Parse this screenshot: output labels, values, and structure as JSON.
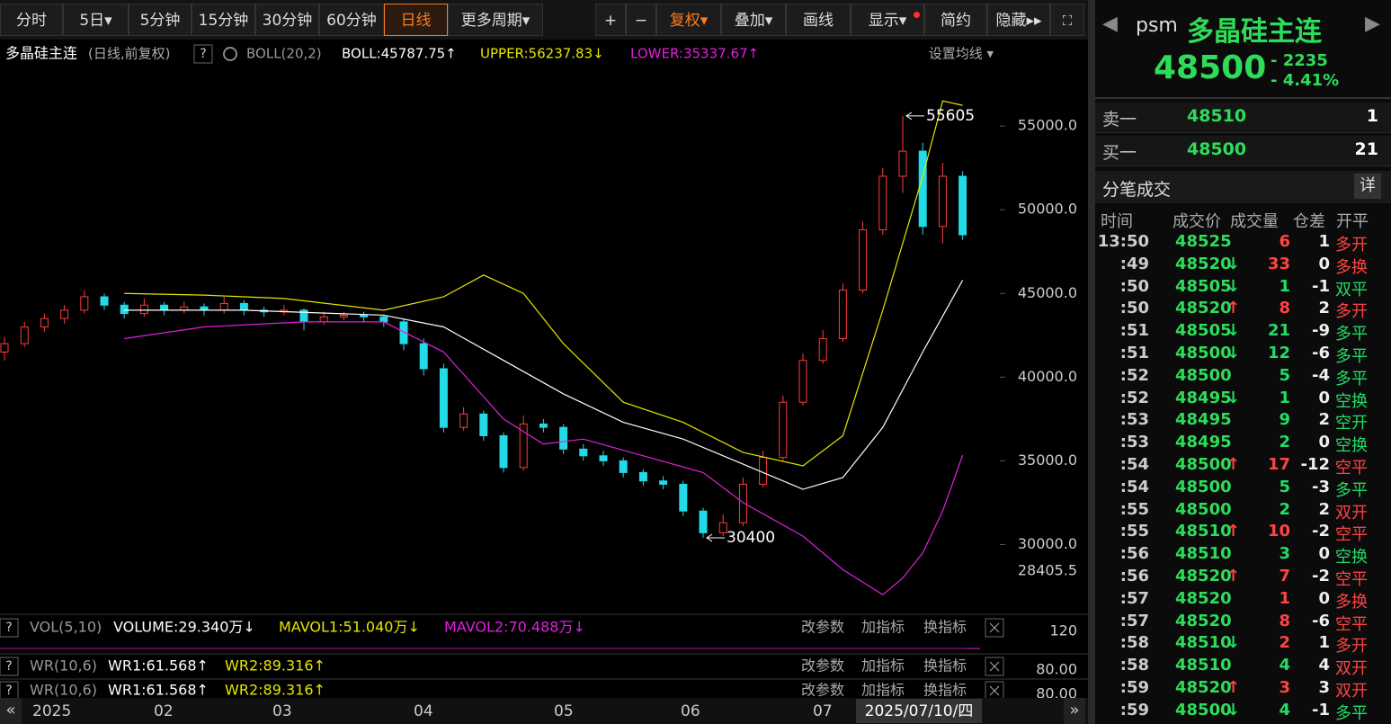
{
  "toolbar": {
    "periods": [
      "分时",
      "5日▾",
      "5分钟",
      "15分钟",
      "30分钟",
      "60分钟",
      "日线",
      "更多周期▾"
    ],
    "active_period": "日线",
    "tools": [
      "+",
      "−",
      "复权▾",
      "叠加▾",
      "画线",
      "显示▾",
      "简约",
      "隐藏▸▸"
    ]
  },
  "info": {
    "symbol": "多晶硅主连",
    "mode": "(日线,前复权)",
    "help": "?",
    "indicator": "BOLL(20,2)",
    "items": [
      {
        "text": "BOLL:45787.75↑",
        "color": "#ffffff"
      },
      {
        "text": "UPPER:56237.83↓",
        "color": "#e6e600"
      },
      {
        "text": "LOWER:35337.67↑",
        "color": "#e020e0"
      }
    ],
    "ma_settings": "设置均线 ▾"
  },
  "chart": {
    "type": "candlestick",
    "ylim": [
      26800,
      58500
    ],
    "yticks": [
      {
        "value": 55000,
        "label": "55000.0"
      },
      {
        "value": 50000,
        "label": "50000.0"
      },
      {
        "value": 45000,
        "label": "45000.0"
      },
      {
        "value": 40000,
        "label": "40000.0"
      },
      {
        "value": 35000,
        "label": "35000.0"
      },
      {
        "value": 30000,
        "label": "30000.0"
      }
    ],
    "up_color": "#ff3b3b",
    "down_color": "#22dbe6",
    "candles": [
      [
        41500,
        42400,
        41000,
        42000
      ],
      [
        42000,
        43300,
        41800,
        43000
      ],
      [
        43000,
        43800,
        42700,
        43500
      ],
      [
        43500,
        44300,
        43200,
        44000
      ],
      [
        44000,
        45200,
        43800,
        44800
      ],
      [
        44800,
        45000,
        44000,
        44300
      ],
      [
        44300,
        44500,
        43500,
        43800
      ],
      [
        43800,
        44700,
        43600,
        44300
      ],
      [
        44300,
        44500,
        43700,
        44000
      ],
      [
        44000,
        44500,
        43800,
        44200
      ],
      [
        44200,
        44400,
        43700,
        44000
      ],
      [
        44000,
        44800,
        43800,
        44400
      ],
      [
        44400,
        44600,
        43700,
        44000
      ],
      [
        44000,
        44200,
        43600,
        43900
      ],
      [
        43900,
        44300,
        43700,
        44000
      ],
      [
        44000,
        44100,
        42800,
        43300
      ],
      [
        43300,
        43900,
        43100,
        43600
      ],
      [
        43600,
        43900,
        43400,
        43700
      ],
      [
        43700,
        43900,
        43300,
        43600
      ],
      [
        43600,
        43700,
        43000,
        43300
      ],
      [
        43300,
        43500,
        41600,
        42000
      ],
      [
        42000,
        42300,
        40100,
        40500
      ],
      [
        40500,
        40800,
        36700,
        37000
      ],
      [
        37000,
        38200,
        36800,
        37800
      ],
      [
        37800,
        38000,
        36200,
        36500
      ],
      [
        36500,
        36700,
        34300,
        34600
      ],
      [
        34600,
        37700,
        34400,
        37200
      ],
      [
        37200,
        37500,
        36700,
        37000
      ],
      [
        37000,
        37200,
        35400,
        35700
      ],
      [
        35700,
        36000,
        35000,
        35300
      ],
      [
        35300,
        35600,
        34700,
        35000
      ],
      [
        35000,
        35200,
        34000,
        34300
      ],
      [
        34300,
        34500,
        33500,
        33800
      ],
      [
        33800,
        34100,
        33300,
        33600
      ],
      [
        33600,
        33800,
        31700,
        32000
      ],
      [
        32000,
        32200,
        30400,
        30700
      ],
      [
        30700,
        31800,
        30500,
        31300
      ],
      [
        31300,
        34000,
        31100,
        33600
      ],
      [
        33600,
        35600,
        33400,
        35200
      ],
      [
        35200,
        38900,
        35000,
        38500
      ],
      [
        38500,
        41400,
        38300,
        41000
      ],
      [
        41000,
        42800,
        40800,
        42300
      ],
      [
        42300,
        45600,
        42100,
        45200
      ],
      [
        45200,
        49300,
        45000,
        48800
      ],
      [
        48800,
        52500,
        48500,
        52000
      ],
      [
        52000,
        55605,
        51000,
        53500
      ],
      [
        53500,
        54000,
        48500,
        49000
      ],
      [
        49000,
        52800,
        48000,
        52000
      ],
      [
        52000,
        52300,
        48200,
        48500
      ]
    ],
    "bands": [
      {
        "name": "UPPER",
        "color": "#e6e600",
        "x": [
          6,
          10,
          14,
          19,
          22,
          24,
          26,
          28,
          31,
          34,
          37,
          40,
          42,
          44,
          46,
          47,
          48
        ],
        "values": [
          45000,
          44900,
          44700,
          44000,
          44800,
          46100,
          45000,
          42000,
          38500,
          37300,
          35500,
          34700,
          36500,
          44000,
          52000,
          56500,
          56237.83
        ]
      },
      {
        "name": "BOLL",
        "color": "#ffffff",
        "x": [
          6,
          12,
          19,
          22,
          25,
          28,
          31,
          34,
          37,
          40,
          42,
          44,
          46,
          48
        ],
        "values": [
          44000,
          44000,
          43700,
          43000,
          41000,
          39000,
          37300,
          36300,
          34800,
          33300,
          34000,
          37000,
          41500,
          45787.75
        ]
      },
      {
        "name": "LOWER",
        "color": "#e020e0",
        "x": [
          6,
          10,
          15,
          19,
          22,
          25,
          27,
          29,
          32,
          35,
          37,
          40,
          42,
          44,
          45,
          46,
          47,
          48
        ],
        "values": [
          42300,
          43000,
          43300,
          43300,
          41500,
          37500,
          36000,
          36300,
          35300,
          34300,
          32500,
          30500,
          28500,
          27000,
          28000,
          29500,
          32000,
          35337.67
        ]
      }
    ],
    "max_annotation": 55605,
    "min_annotation": 30400,
    "cursor_price": 28405.5,
    "x_labels": [
      "2025",
      "02",
      "03",
      "04",
      "05",
      "06",
      "07"
    ],
    "cursor_date": "2025/07/10/四"
  },
  "panels": [
    {
      "help": "?",
      "label": "VOL(5,10)",
      "items": [
        {
          "text": "VOLUME:29.340万↓",
          "color": "#ffffff"
        },
        {
          "text": "MAVOL1:51.040万↓",
          "color": "#e6e600"
        },
        {
          "text": "MAVOL2:70.488万↓",
          "color": "#e020e0"
        }
      ],
      "buttons": [
        "改参数",
        "加指标",
        "换指标"
      ],
      "axis": "120"
    },
    {
      "help": "?",
      "label": "WR(10,6)",
      "items": [
        {
          "text": "WR1:61.568↑",
          "color": "#ffffff"
        },
        {
          "text": "WR2:89.316↑",
          "color": "#e6e600"
        }
      ],
      "buttons": [
        "改参数",
        "加指标",
        "换指标"
      ],
      "axis": "80.00"
    },
    {
      "help": "?",
      "label": "WR(10,6)",
      "items": [
        {
          "text": "WR1:61.568↑",
          "color": "#ffffff"
        },
        {
          "text": "WR2:89.316↑",
          "color": "#e6e600"
        }
      ],
      "buttons": [
        "改参数",
        "加指标",
        "换指标"
      ],
      "axis": "80.00"
    }
  ],
  "quote": {
    "code": "psm",
    "name": "多晶硅主连",
    "price": 48500,
    "change": {
      "value": -2235,
      "label": "- 2235"
    },
    "change_pct": {
      "value": -4.41,
      "label": "- 4.41%"
    },
    "book": [
      {
        "label": "卖一",
        "price": 48510,
        "volume": 1
      },
      {
        "label": "买一",
        "price": 48500,
        "volume": 21
      }
    ],
    "ticks_title": "分笔成交",
    "detail": "详",
    "columns": [
      "时间",
      "成交价",
      "成交量",
      "仓差",
      "开平"
    ],
    "arrow_colors": {
      "↑": "#ff4444",
      "↓": "#22dd66"
    },
    "rows": [
      {
        "time": "13:50",
        "price": 48525,
        "arrow": "",
        "volume": 6,
        "volume_color": "#ff4444",
        "oi": 1,
        "type": "多开",
        "type_color": "#ff4444"
      },
      {
        "time": ":49",
        "price": 48520,
        "arrow": "↓",
        "volume": 33,
        "volume_color": "#ff4444",
        "oi": 0,
        "type": "多换",
        "type_color": "#ff4444"
      },
      {
        "time": ":50",
        "price": 48505,
        "arrow": "↓",
        "volume": 1,
        "volume_color": "#22dd66",
        "oi": -1,
        "type": "双平",
        "type_color": "#22dd66"
      },
      {
        "time": ":50",
        "price": 48520,
        "arrow": "↑",
        "volume": 8,
        "volume_color": "#ff4444",
        "oi": 2,
        "type": "多开",
        "type_color": "#ff4444"
      },
      {
        "time": ":51",
        "price": 48505,
        "arrow": "↓",
        "volume": 21,
        "volume_color": "#22dd66",
        "oi": -9,
        "type": "多平",
        "type_color": "#22dd66"
      },
      {
        "time": ":51",
        "price": 48500,
        "arrow": "↓",
        "volume": 12,
        "volume_color": "#22dd66",
        "oi": -6,
        "type": "多平",
        "type_color": "#22dd66"
      },
      {
        "time": ":52",
        "price": 48500,
        "arrow": "",
        "volume": 5,
        "volume_color": "#22dd66",
        "oi": -4,
        "type": "多平",
        "type_color": "#22dd66"
      },
      {
        "time": ":52",
        "price": 48495,
        "arrow": "↓",
        "volume": 1,
        "volume_color": "#22dd66",
        "oi": 0,
        "type": "空换",
        "type_color": "#22dd66"
      },
      {
        "time": ":53",
        "price": 48495,
        "arrow": "",
        "volume": 9,
        "volume_color": "#22dd66",
        "oi": 2,
        "type": "空开",
        "type_color": "#22dd66"
      },
      {
        "time": ":53",
        "price": 48495,
        "arrow": "",
        "volume": 2,
        "volume_color": "#22dd66",
        "oi": 0,
        "type": "空换",
        "type_color": "#22dd66"
      },
      {
        "time": ":54",
        "price": 48500,
        "arrow": "↑",
        "volume": 17,
        "volume_color": "#ff4444",
        "oi": -12,
        "type": "空平",
        "type_color": "#ff4444"
      },
      {
        "time": ":54",
        "price": 48500,
        "arrow": "",
        "volume": 5,
        "volume_color": "#22dd66",
        "oi": -3,
        "type": "多平",
        "type_color": "#22dd66"
      },
      {
        "time": ":55",
        "price": 48500,
        "arrow": "",
        "volume": 2,
        "volume_color": "#22dd66",
        "oi": 2,
        "type": "双开",
        "type_color": "#ff4444"
      },
      {
        "time": ":55",
        "price": 48510,
        "arrow": "↑",
        "volume": 10,
        "volume_color": "#ff4444",
        "oi": -2,
        "type": "空平",
        "type_color": "#ff4444"
      },
      {
        "time": ":56",
        "price": 48510,
        "arrow": "",
        "volume": 3,
        "volume_color": "#22dd66",
        "oi": 0,
        "type": "空换",
        "type_color": "#22dd66"
      },
      {
        "time": ":56",
        "price": 48520,
        "arrow": "↑",
        "volume": 7,
        "volume_color": "#ff4444",
        "oi": -2,
        "type": "空平",
        "type_color": "#ff4444"
      },
      {
        "time": ":57",
        "price": 48520,
        "arrow": "",
        "volume": 1,
        "volume_color": "#ff4444",
        "oi": 0,
        "type": "多换",
        "type_color": "#ff4444"
      },
      {
        "time": ":57",
        "price": 48520,
        "arrow": "",
        "volume": 8,
        "volume_color": "#ff4444",
        "oi": -6,
        "type": "空平",
        "type_color": "#ff4444"
      },
      {
        "time": ":58",
        "price": 48510,
        "arrow": "↓",
        "volume": 2,
        "volume_color": "#ff4444",
        "oi": 1,
        "type": "多开",
        "type_color": "#ff4444"
      },
      {
        "time": ":58",
        "price": 48510,
        "arrow": "",
        "volume": 4,
        "volume_color": "#22dd66",
        "oi": 4,
        "type": "双开",
        "type_color": "#ff4444"
      },
      {
        "time": ":59",
        "price": 48520,
        "arrow": "↑",
        "volume": 3,
        "volume_color": "#ff4444",
        "oi": 3,
        "type": "双开",
        "type_color": "#ff4444"
      },
      {
        "time": ":59",
        "price": 48500,
        "arrow": "↓",
        "volume": 4,
        "volume_color": "#22dd66",
        "oi": -1,
        "type": "多平",
        "type_color": "#22dd66"
      }
    ]
  }
}
